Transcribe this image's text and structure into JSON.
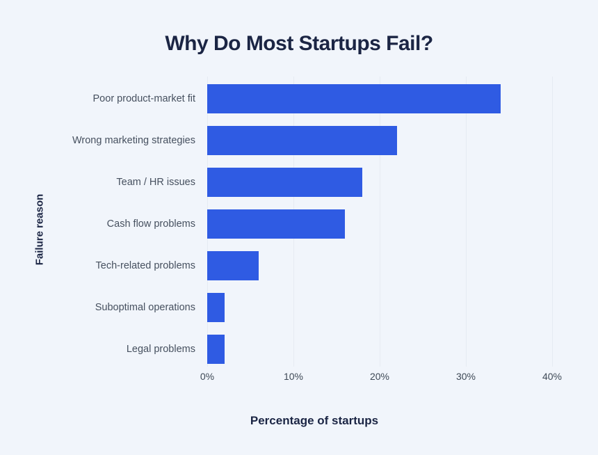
{
  "chart": {
    "title": "Why Do Most Startups Fail?",
    "x_axis_label": "Percentage of startups",
    "y_axis_label": "Failure reason"
  },
  "chart_data": {
    "type": "bar",
    "orientation": "horizontal",
    "title": "Why Do Most Startups Fail?",
    "xlabel": "Percentage of startups",
    "ylabel": "Failure reason",
    "categories": [
      "Poor product-market fit",
      "Wrong marketing strategies",
      "Team / HR issues",
      "Cash flow problems",
      "Tech-related problems",
      "Suboptimal operations",
      "Legal problems"
    ],
    "values": [
      34,
      22,
      18,
      16,
      6,
      2,
      2
    ],
    "unit": "%",
    "xlim": [
      0,
      40
    ],
    "x_ticks": [
      "0%",
      "10%",
      "20%",
      "30%",
      "40%"
    ],
    "grid": "vertical",
    "legend": "none",
    "colors": {
      "bar": "#2F5BE3",
      "background": "#F1F5FB",
      "heading_text": "#1B2544",
      "label_text": "#46505F",
      "tick_text": "#3E4956",
      "gridline": "#E6EBF2"
    }
  }
}
